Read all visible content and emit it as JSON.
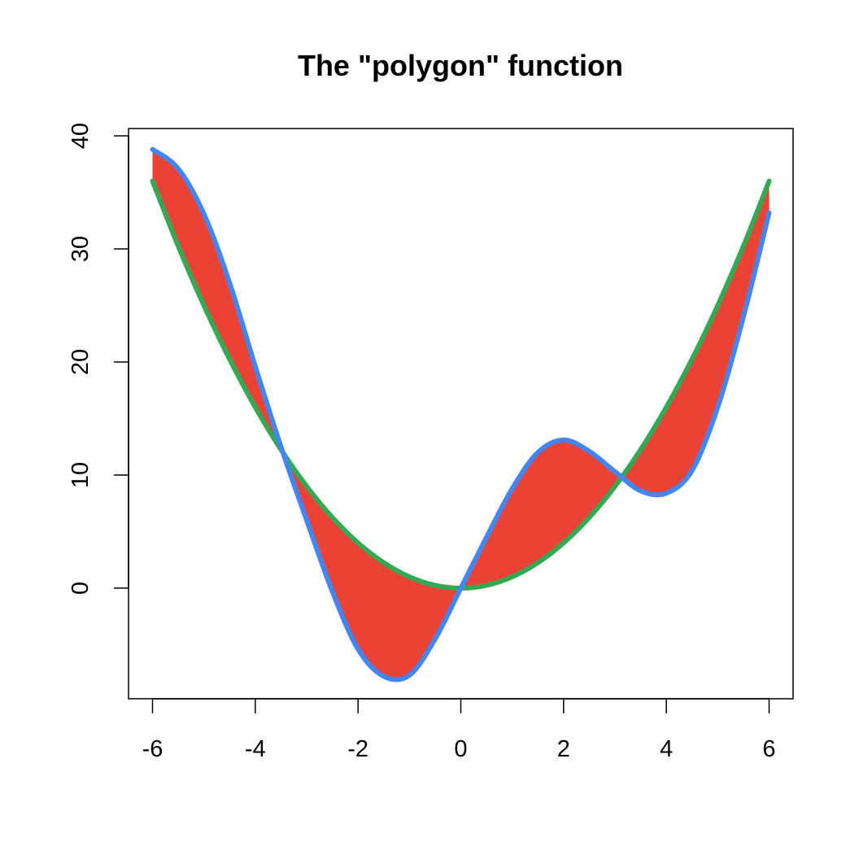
{
  "chart_data": {
    "type": "area",
    "title": "The \"polygon\" function",
    "xlabel": "",
    "ylabel": "",
    "xlim": [
      -6,
      6
    ],
    "ylim": [
      -8,
      40
    ],
    "x_ticks": [
      "-6",
      "-4",
      "-2",
      "0",
      "2",
      "4",
      "6"
    ],
    "y_ticks": [
      "0",
      "10",
      "20",
      "30",
      "40"
    ],
    "grid": false,
    "legend": "none",
    "series": [
      {
        "color": "#4285F4",
        "style": "line",
        "x": [
          -6,
          -5.5,
          -5,
          -4.5,
          -4,
          -3.5,
          -3,
          -2.5,
          -2,
          -1.5,
          -1,
          -0.5,
          0,
          0.5,
          1,
          1.5,
          2,
          2.5,
          3,
          3.5,
          4,
          4.5,
          5,
          5.5,
          6
        ],
        "y": [
          38.8,
          37.1,
          33.1,
          27.0,
          19.6,
          12.5,
          6.0,
          -0.3,
          -5.4,
          -7.8,
          -7.7,
          -4.5,
          0.0,
          4.5,
          8.8,
          12.0,
          13.1,
          12.1,
          10.3,
          8.6,
          8.4,
          10.4,
          16.0,
          24.0,
          33.2
        ]
      },
      {
        "color": "#34A853",
        "style": "line",
        "x": [
          -6,
          -5.5,
          -5,
          -4.5,
          -4,
          -3.5,
          -3,
          -2.5,
          -2,
          -1.5,
          -1,
          -0.5,
          0,
          0.5,
          1,
          1.5,
          2,
          2.5,
          3,
          3.5,
          4,
          4.5,
          5,
          5.5,
          6
        ],
        "y": [
          36,
          30.25,
          25,
          20.25,
          16,
          12.25,
          9,
          6.25,
          4,
          2.25,
          1,
          0.25,
          0,
          0.25,
          1,
          2.25,
          4,
          6.25,
          9,
          12.25,
          16,
          20.25,
          25,
          30.25,
          36
        ]
      }
    ],
    "fill_between": {
      "color": "#EA4335"
    }
  }
}
